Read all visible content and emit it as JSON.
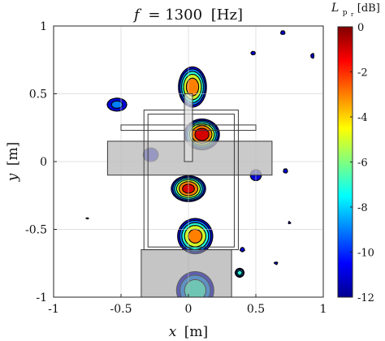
{
  "chart_data": {
    "type": "heatmap",
    "title": {
      "lhs": "f",
      "eq": "= 1300",
      "unit": "[Hz]"
    },
    "xlabel": {
      "var": "x",
      "unit": "[m]"
    },
    "ylabel": {
      "var": "y",
      "unit": "[m]"
    },
    "xlim": [
      -1,
      1
    ],
    "ylim": [
      -1,
      1
    ],
    "xticks": [
      -1,
      -0.5,
      0,
      0.5,
      1
    ],
    "yticks": [
      -1,
      -0.5,
      0,
      0.5,
      1
    ],
    "grid": true,
    "colorbar": {
      "label_main": "L",
      "label_sub": "p",
      "label_subsub": "r",
      "label_unit": "[dB]",
      "range": [
        -12,
        0
      ],
      "ticks": [
        0,
        -2,
        -4,
        -6,
        -8,
        -10,
        -12
      ],
      "tick_labels": [
        "0",
        "-2",
        "-4",
        "-6",
        "-8",
        "-10",
        "-12"
      ]
    },
    "contour_levels_dB": [
      -12,
      -10,
      -8,
      -6,
      -4,
      -2
    ],
    "sources": [
      {
        "x": 0.03,
        "y": 0.55,
        "sx": 0.07,
        "sy": 0.1,
        "peak_dB": -2.0
      },
      {
        "x": 0.1,
        "y": 0.2,
        "sx": 0.08,
        "sy": 0.07,
        "peak_dB": 0.0
      },
      {
        "x": 0.0,
        "y": -0.2,
        "sx": 0.08,
        "sy": 0.06,
        "peak_dB": -0.5
      },
      {
        "x": 0.05,
        "y": -0.55,
        "sx": 0.09,
        "sy": 0.09,
        "peak_dB": -2.5
      },
      {
        "x": 0.05,
        "y": -0.95,
        "sx": 0.12,
        "sy": 0.12,
        "peak_dB": -6.0
      },
      {
        "x": -0.28,
        "y": 0.05,
        "sx": 0.1,
        "sy": 0.09,
        "peak_dB": -10.5
      },
      {
        "x": -0.53,
        "y": 0.42,
        "sx": 0.09,
        "sy": 0.06,
        "peak_dB": -9.0
      },
      {
        "x": 0.5,
        "y": -0.1,
        "sx": 0.09,
        "sy": 0.09,
        "peak_dB": -11.0
      },
      {
        "x": 0.72,
        "y": -0.07,
        "sx": 0.04,
        "sy": 0.04,
        "peak_dB": -11.0
      },
      {
        "x": 0.48,
        "y": 0.8,
        "sx": 0.06,
        "sy": 0.05,
        "peak_dB": -11.5
      },
      {
        "x": 0.7,
        "y": 0.95,
        "sx": 0.06,
        "sy": 0.05,
        "peak_dB": -11.5
      },
      {
        "x": 0.92,
        "y": 0.78,
        "sx": 0.04,
        "sy": 0.07,
        "peak_dB": -11.5
      },
      {
        "x": 0.75,
        "y": -0.45,
        "sx": 0.04,
        "sy": 0.04,
        "peak_dB": -11.5
      },
      {
        "x": 0.4,
        "y": -0.65,
        "sx": 0.04,
        "sy": 0.04,
        "peak_dB": -11.0
      },
      {
        "x": 0.65,
        "y": -0.75,
        "sx": 0.05,
        "sy": 0.04,
        "peak_dB": -11.5
      },
      {
        "x": -0.75,
        "y": -0.42,
        "sx": 0.04,
        "sy": 0.03,
        "peak_dB": -11.5
      },
      {
        "x": 0.38,
        "y": -0.82,
        "sx": 0.03,
        "sy": 0.03,
        "peak_dB": -6.0
      }
    ],
    "overlays": [
      {
        "shape": "rect",
        "x0": -0.6,
        "x1": 0.62,
        "y0": -0.1,
        "y1": 0.15,
        "fill": "#bdbdbd",
        "opacity": 0.8
      },
      {
        "shape": "rect",
        "x0": -0.35,
        "x1": 0.32,
        "y0": -1.0,
        "y1": -0.65,
        "fill": "#9e9e9e",
        "opacity": 0.6
      },
      {
        "shape": "rect",
        "x0": -0.5,
        "x1": 0.5,
        "y0": 0.23,
        "y1": 0.27,
        "fill": "none"
      },
      {
        "shape": "rect",
        "x0": -0.33,
        "x1": 0.37,
        "y0": -0.65,
        "y1": 0.38,
        "fill": "none"
      },
      {
        "shape": "rect",
        "x0": -0.3,
        "x1": 0.34,
        "y0": -0.63,
        "y1": 0.35,
        "fill": "none"
      },
      {
        "shape": "rect",
        "x0": -0.03,
        "x1": 0.03,
        "y0": 0.0,
        "y1": 0.5,
        "fill": "#e0e0e0",
        "opacity": 0.7
      }
    ]
  }
}
